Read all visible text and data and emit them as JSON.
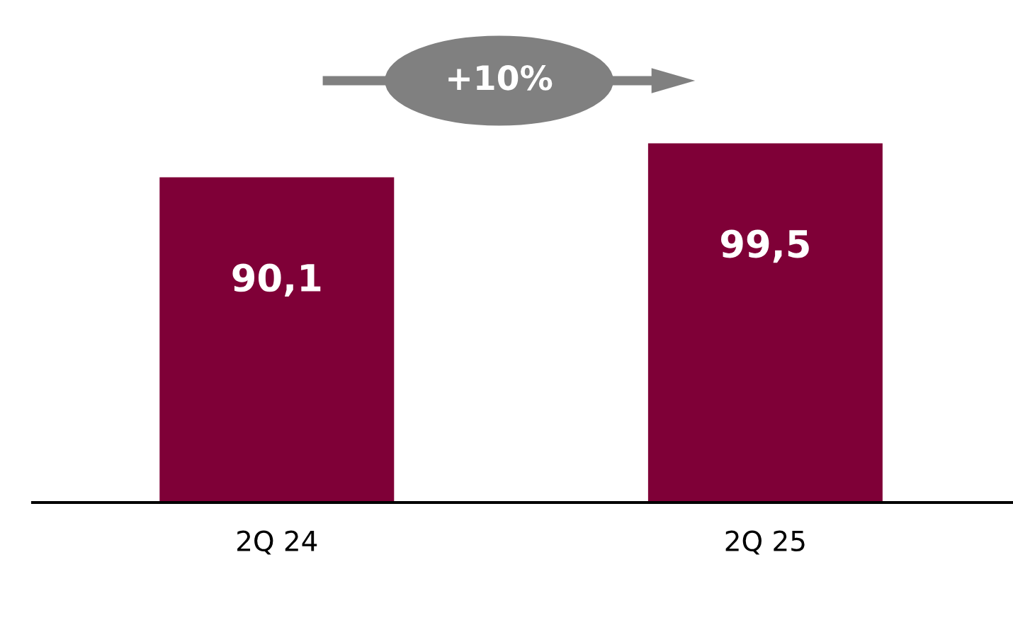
{
  "chart_data": {
    "type": "bar",
    "categories": [
      "2Q 24",
      "2Q 25"
    ],
    "values": [
      90.1,
      99.5
    ],
    "value_labels": [
      "90,1",
      "99,5"
    ],
    "color": "#7f0037",
    "tick_labels": "x",
    "grid": false,
    "annotations": [
      "+10%"
    ]
  }
}
